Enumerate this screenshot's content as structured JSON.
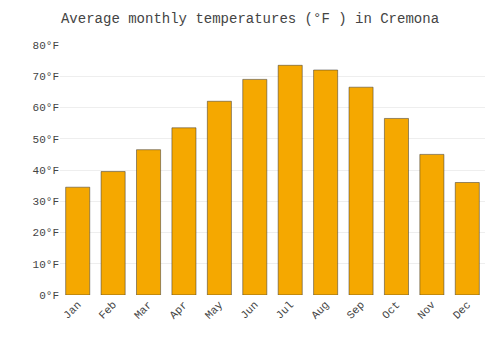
{
  "chart_data": {
    "type": "bar",
    "title": "Average monthly temperatures (°F ) in Cremona",
    "categories": [
      "Jan",
      "Feb",
      "Mar",
      "Apr",
      "May",
      "Jun",
      "Jul",
      "Aug",
      "Sep",
      "Oct",
      "Nov",
      "Dec"
    ],
    "values": [
      34.5,
      39.5,
      46.5,
      53.5,
      62.0,
      69.0,
      73.5,
      72.0,
      66.5,
      56.5,
      45.0,
      36.0
    ],
    "color": "#F5A800",
    "ylim": [
      0,
      80
    ],
    "yticks": [
      {
        "value": 0,
        "label": "0°F"
      },
      {
        "value": 10,
        "label": "10°F"
      },
      {
        "value": 20,
        "label": "20°F"
      },
      {
        "value": 30,
        "label": "30°F"
      },
      {
        "value": 40,
        "label": "40°F"
      },
      {
        "value": 50,
        "label": "50°F"
      },
      {
        "value": 60,
        "label": "60°F"
      },
      {
        "value": 70,
        "label": "70°F"
      },
      {
        "value": 80,
        "label": "80°F"
      }
    ],
    "grid": true
  }
}
